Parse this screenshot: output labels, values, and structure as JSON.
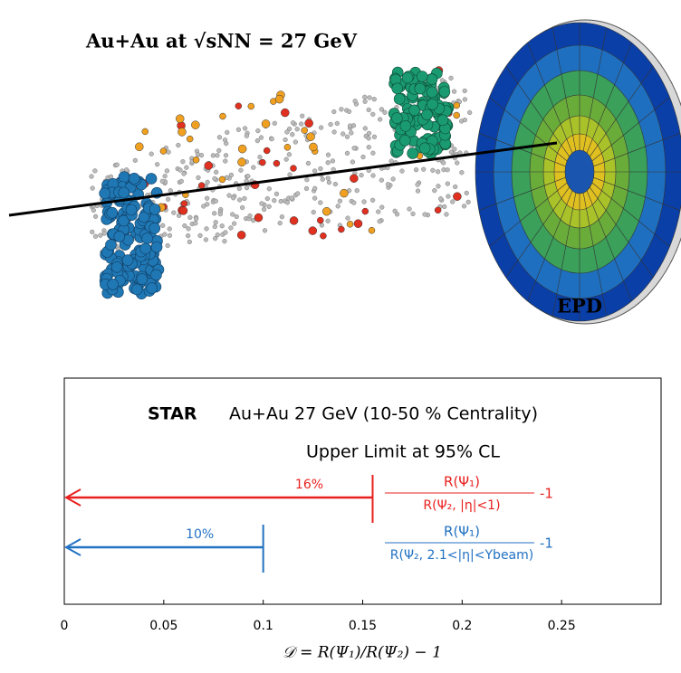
{
  "illustration": {
    "title": "Au+Au at √sNN = 27 GeV",
    "detector_label": "EPD"
  },
  "chart_data": {
    "type": "upper-limit",
    "headline_bold": "STAR",
    "headline": "Au+Au 27 GeV (10-50 % Centrality)",
    "subtitle": "Upper Limit at 95% CL",
    "x_label": "𝒟 = R(Ψ₁)/R(Ψ₂) − 1",
    "xlim": [
      0,
      0.3
    ],
    "xticks": [
      0,
      0.05,
      0.1,
      0.15,
      0.2,
      0.25
    ],
    "series": [
      {
        "numerator": "R(Ψ₁)",
        "denominator": "R(Ψ₂, |η|<1)",
        "suffix": "-1",
        "color": "#e8211f",
        "values": [
          0.155
        ],
        "value_labels": [
          "16%"
        ]
      },
      {
        "numerator": "R(Ψ₁)",
        "denominator": "R(Ψ₂, 2.1<|η|<Ybeam)",
        "suffix": "-1",
        "color": "#2272c3",
        "values": [
          0.1
        ],
        "value_labels": [
          "10%"
        ]
      }
    ]
  }
}
